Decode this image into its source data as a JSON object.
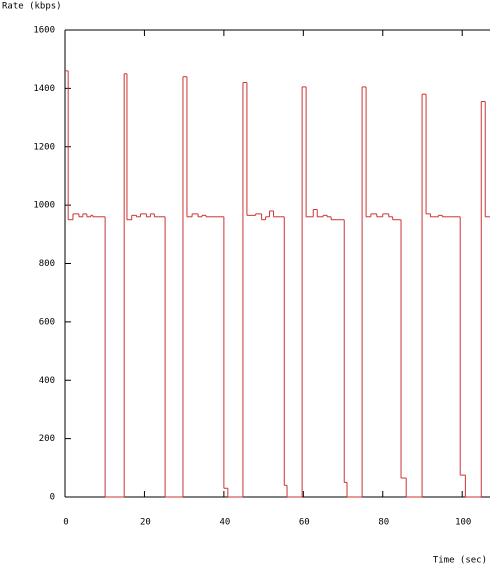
{
  "chart_data": {
    "type": "line",
    "step": "post",
    "y_label": "Rate (kbps)",
    "x_label": "Time (sec)",
    "xlim": [
      0,
      107
    ],
    "ylim": [
      0,
      1600
    ],
    "xticks": [
      0,
      20,
      40,
      60,
      80,
      100
    ],
    "yticks": [
      0,
      200,
      400,
      600,
      800,
      1000,
      1200,
      1400,
      1600
    ],
    "grid": false,
    "series": [
      {
        "color": "#cc3333",
        "x": [
          0,
          0.8,
          2,
          3.5,
          4.5,
          5.5,
          6.5,
          7,
          10.1,
          14.9,
          15.6,
          16.8,
          18,
          19,
          20.5,
          21.5,
          22.5,
          25.2,
          29.7,
          30.7,
          32,
          33.5,
          34.5,
          35.5,
          36.5,
          40,
          41,
          44.8,
          45.8,
          48,
          49.5,
          50.5,
          51.5,
          52.5,
          55.2,
          55.9,
          59.7,
          60.7,
          62.5,
          63.5,
          65,
          66,
          67,
          70.3,
          71,
          74.8,
          75.8,
          77,
          78.5,
          80,
          81.5,
          82.5,
          84.6,
          85.9,
          89.9,
          90.9,
          92,
          94,
          95,
          96.5,
          99.5,
          100.8,
          104.8,
          105.8
        ],
        "values": [
          1460,
          950,
          970,
          960,
          970,
          960,
          965,
          960,
          0,
          1450,
          950,
          965,
          960,
          970,
          960,
          970,
          960,
          0,
          1440,
          960,
          970,
          960,
          965,
          960,
          960,
          30,
          0,
          1420,
          965,
          970,
          950,
          960,
          980,
          960,
          40,
          0,
          1405,
          960,
          985,
          960,
          965,
          960,
          950,
          50,
          0,
          1405,
          960,
          970,
          960,
          970,
          960,
          950,
          65,
          0,
          1380,
          970,
          960,
          965,
          960,
          960,
          75,
          0,
          1355,
          960
        ]
      }
    ]
  }
}
